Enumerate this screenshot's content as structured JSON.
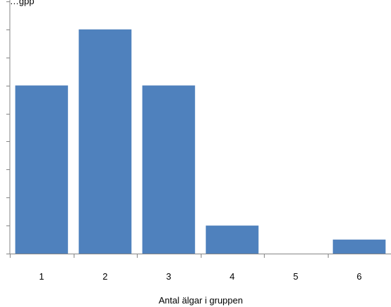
{
  "chart_data": {
    "type": "bar",
    "title": "",
    "title_fragment": "…gpp",
    "xlabel": "Antal älgar i gruppen",
    "ylabel": "",
    "categories": [
      "1",
      "2",
      "3",
      "4",
      "5",
      "6"
    ],
    "values": [
      6,
      8,
      6,
      1,
      0,
      0.5
    ],
    "ylim": [
      0,
      9.5
    ],
    "y_tick_step": 1,
    "y_tick_labels_visible": false,
    "grid": false,
    "legend": "none",
    "bar_color": "#4F81BD",
    "axis_color": "#868686"
  }
}
